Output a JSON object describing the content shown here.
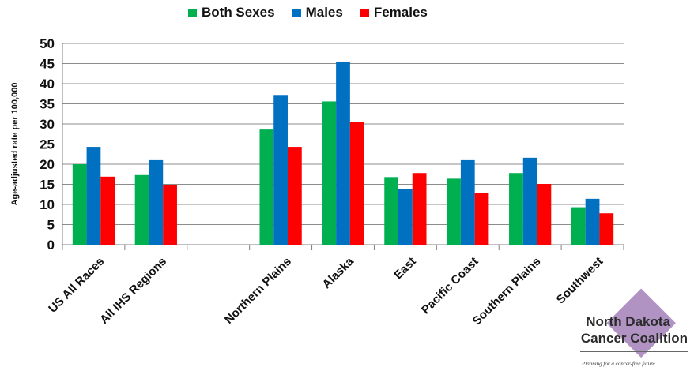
{
  "chart_data": {
    "type": "bar",
    "ylabel": "Age-adjusted rate per 100,000",
    "ylim": [
      0,
      50
    ],
    "yticks": [
      0,
      5,
      10,
      15,
      20,
      25,
      30,
      35,
      40,
      45,
      50
    ],
    "grid": true,
    "legend_position": "top",
    "categories": [
      "US All Races",
      "All IHS Regions",
      "",
      "Northern Plains",
      "Alaska",
      "East",
      "Pacific Coast",
      "Southern Plains",
      "Southwest"
    ],
    "series": [
      {
        "name": "Both Sexes",
        "color": "#00b050",
        "values": [
          20.0,
          17.3,
          null,
          28.6,
          35.6,
          16.8,
          16.4,
          17.8,
          9.3
        ]
      },
      {
        "name": "Males",
        "color": "#0070c0",
        "values": [
          24.3,
          21.0,
          null,
          37.2,
          45.5,
          13.8,
          21.0,
          21.6,
          11.4
        ]
      },
      {
        "name": "Females",
        "color": "#ff0000",
        "values": [
          16.9,
          14.8,
          null,
          24.3,
          30.4,
          17.8,
          12.8,
          15.1,
          7.8
        ]
      }
    ]
  },
  "logo": {
    "line1": "North Dakota",
    "line2": "Cancer Coalition",
    "tagline": "Planning for a cancer-free future."
  }
}
